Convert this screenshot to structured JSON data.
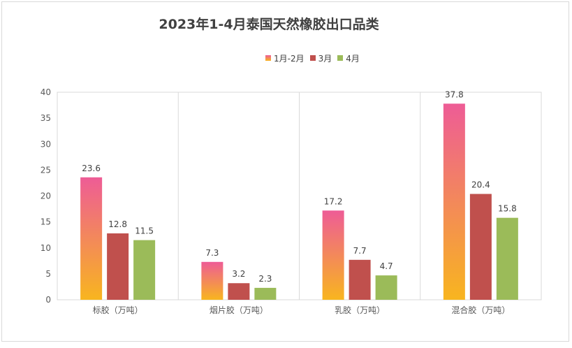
{
  "chart_data": {
    "type": "bar",
    "title": "2023年1-4月泰国天然橡胶出口品类",
    "categories": [
      "标胶（万吨）",
      "烟片胶（万吨）",
      "乳胶（万吨）",
      "混合胶（万吨）"
    ],
    "series": [
      {
        "name": "1月-2月",
        "values": [
          23.6,
          7.3,
          17.2,
          37.8
        ],
        "color_top": "#ee5c96",
        "color_bottom": "#f8b51f"
      },
      {
        "name": "3月",
        "values": [
          12.8,
          3.2,
          7.7,
          20.4
        ],
        "color": "#c0504d"
      },
      {
        "name": "4月",
        "values": [
          11.5,
          2.3,
          4.7,
          15.8
        ],
        "color": "#9bbb59"
      }
    ],
    "ylim": [
      0,
      40
    ],
    "yticks": [
      0,
      5,
      10,
      15,
      20,
      25,
      30,
      35,
      40
    ],
    "grid": "vertical category separators",
    "legend_position": "top"
  }
}
